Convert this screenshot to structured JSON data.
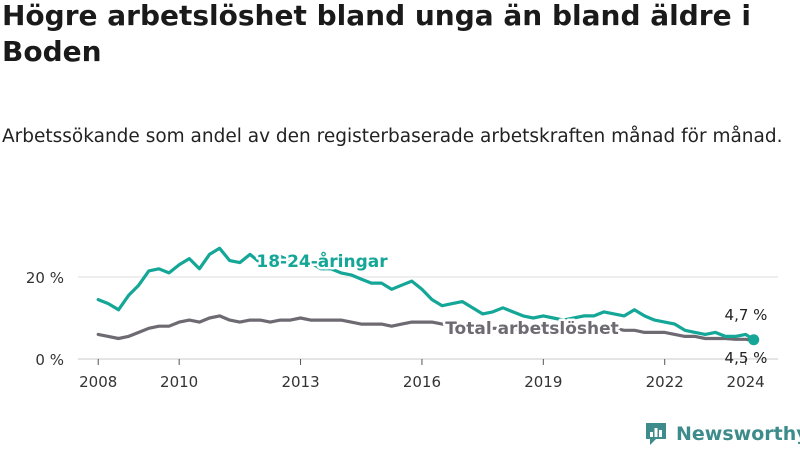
{
  "title": "Högre arbetslöshet bland unga än bland äldre i Boden",
  "subtitle": "Arbetssökande som andel av den registerbaserade arbetskraften månad för månad.",
  "brand": {
    "name": "Newsworthy",
    "icon": "bar-chart-logo-icon"
  },
  "colors": {
    "youth": "#14a697",
    "total": "#6e6a72",
    "grid": "#dddddd",
    "axis": "#555555"
  },
  "chart_data": {
    "type": "line",
    "title": "Högre arbetslöshet bland unga än bland äldre i Boden",
    "subtitle": "Arbetssökande som andel av den registerbaserade arbetskraften månad för månad.",
    "xlabel": "",
    "ylabel": "",
    "xlim": [
      2007.5,
      2024.8
    ],
    "ylim": [
      0,
      30
    ],
    "grid": true,
    "x_ticks": [
      {
        "value": 2008,
        "label": "2008"
      },
      {
        "value": 2010,
        "label": "2010"
      },
      {
        "value": 2013,
        "label": "2013"
      },
      {
        "value": 2016,
        "label": "2016"
      },
      {
        "value": 2019,
        "label": "2019"
      },
      {
        "value": 2022,
        "label": "2022"
      },
      {
        "value": 2024,
        "label": "2024"
      }
    ],
    "y_ticks": [
      {
        "value": 0,
        "label": "0 %"
      },
      {
        "value": 20,
        "label": "20 %"
      }
    ],
    "series": [
      {
        "name": "18-24-åringar",
        "key": "youth",
        "label": "18-24-åringar",
        "end_label": "4,7 %",
        "x": [
          2008.0,
          2008.25,
          2008.5,
          2008.75,
          2009.0,
          2009.25,
          2009.5,
          2009.75,
          2010.0,
          2010.25,
          2010.5,
          2010.75,
          2011.0,
          2011.25,
          2011.5,
          2011.75,
          2012.0,
          2012.25,
          2012.5,
          2012.75,
          2013.0,
          2013.25,
          2013.5,
          2013.75,
          2014.0,
          2014.25,
          2014.5,
          2014.75,
          2015.0,
          2015.25,
          2015.5,
          2015.75,
          2016.0,
          2016.25,
          2016.5,
          2016.75,
          2017.0,
          2017.25,
          2017.5,
          2017.75,
          2018.0,
          2018.25,
          2018.5,
          2018.75,
          2019.0,
          2019.25,
          2019.5,
          2019.75,
          2020.0,
          2020.25,
          2020.5,
          2020.75,
          2021.0,
          2021.25,
          2021.5,
          2021.75,
          2022.0,
          2022.25,
          2022.5,
          2022.75,
          2023.0,
          2023.25,
          2023.5,
          2023.75,
          2024.0,
          2024.2
        ],
        "values": [
          14.5,
          13.5,
          12.0,
          15.5,
          18.0,
          21.5,
          22.0,
          21.0,
          23.0,
          24.5,
          22.0,
          25.5,
          27.0,
          24.0,
          23.5,
          25.5,
          23.5,
          22.5,
          25.0,
          24.0,
          24.5,
          23.5,
          22.0,
          22.0,
          21.0,
          20.5,
          19.5,
          18.5,
          18.5,
          17.0,
          18.0,
          19.0,
          17.0,
          14.5,
          13.0,
          13.5,
          14.0,
          12.5,
          11.0,
          11.5,
          12.5,
          11.5,
          10.5,
          10.0,
          10.5,
          10.0,
          9.5,
          10.0,
          10.5,
          10.5,
          11.5,
          11.0,
          10.5,
          12.0,
          10.5,
          9.5,
          9.0,
          8.5,
          7.0,
          6.5,
          6.0,
          6.5,
          5.5,
          5.5,
          6.0,
          4.7
        ]
      },
      {
        "name": "Total arbetslöshet",
        "key": "total",
        "label": "Total arbetslöshet",
        "end_label": "4,5 %",
        "x": [
          2008.0,
          2008.25,
          2008.5,
          2008.75,
          2009.0,
          2009.25,
          2009.5,
          2009.75,
          2010.0,
          2010.25,
          2010.5,
          2010.75,
          2011.0,
          2011.25,
          2011.5,
          2011.75,
          2012.0,
          2012.25,
          2012.5,
          2012.75,
          2013.0,
          2013.25,
          2013.5,
          2013.75,
          2014.0,
          2014.25,
          2014.5,
          2014.75,
          2015.0,
          2015.25,
          2015.5,
          2015.75,
          2016.0,
          2016.25,
          2016.5,
          2016.75,
          2017.0,
          2017.25,
          2017.5,
          2017.75,
          2018.0,
          2018.25,
          2018.5,
          2018.75,
          2019.0,
          2019.25,
          2019.5,
          2019.75,
          2020.0,
          2020.25,
          2020.5,
          2020.75,
          2021.0,
          2021.25,
          2021.5,
          2021.75,
          2022.0,
          2022.25,
          2022.5,
          2022.75,
          2023.0,
          2023.25,
          2023.5,
          2023.75,
          2024.0,
          2024.2
        ],
        "values": [
          6.0,
          5.5,
          5.0,
          5.5,
          6.5,
          7.5,
          8.0,
          8.0,
          9.0,
          9.5,
          9.0,
          10.0,
          10.5,
          9.5,
          9.0,
          9.5,
          9.5,
          9.0,
          9.5,
          9.5,
          10.0,
          9.5,
          9.5,
          9.5,
          9.5,
          9.0,
          8.5,
          8.5,
          8.5,
          8.0,
          8.5,
          9.0,
          9.0,
          9.0,
          8.5,
          8.5,
          8.5,
          8.0,
          7.5,
          7.5,
          7.5,
          7.5,
          7.0,
          7.0,
          7.0,
          7.0,
          7.0,
          7.0,
          7.5,
          7.5,
          7.5,
          7.5,
          7.0,
          7.0,
          6.5,
          6.5,
          6.5,
          6.0,
          5.5,
          5.5,
          5.0,
          5.0,
          5.0,
          4.8,
          4.8,
          4.5
        ]
      }
    ]
  }
}
